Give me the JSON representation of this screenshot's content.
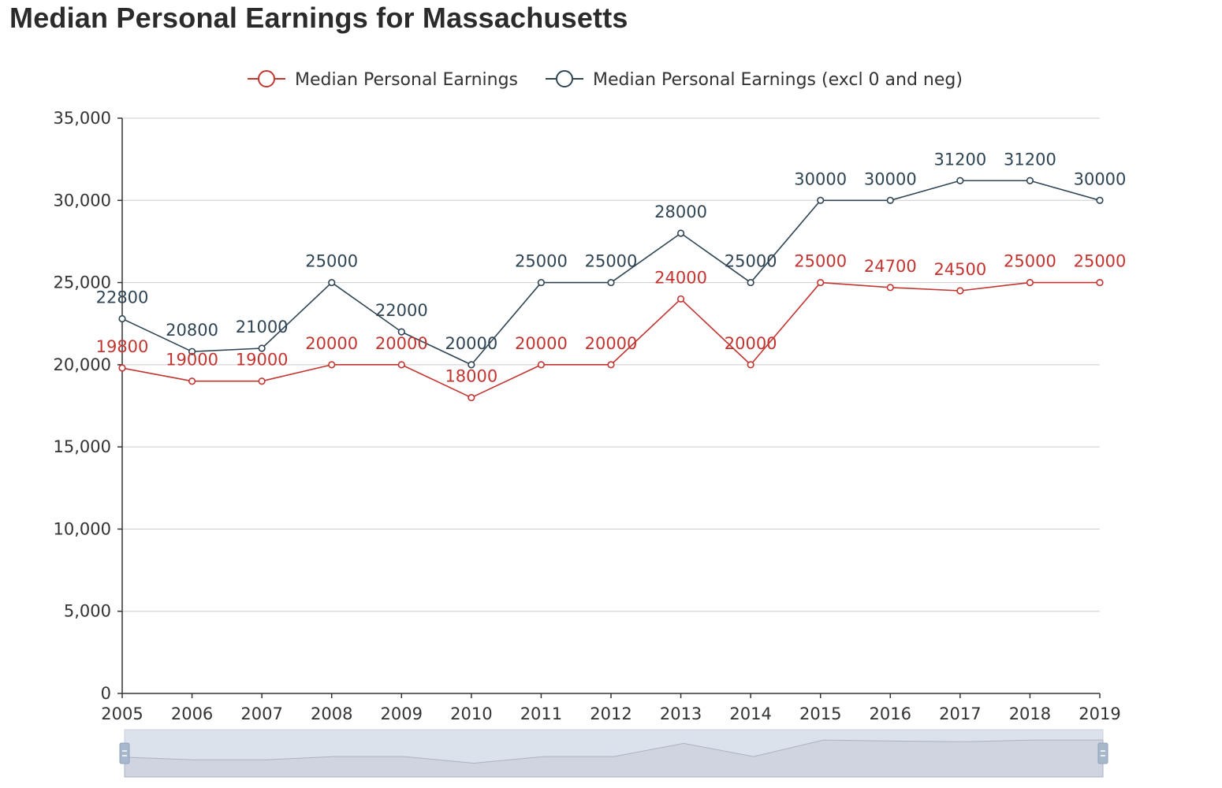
{
  "page": {
    "title": "Median Personal Earnings for Massachusetts"
  },
  "chart_data": {
    "type": "line",
    "title": "Median Personal Earnings for Massachusetts",
    "x": [
      "2005",
      "2006",
      "2007",
      "2008",
      "2009",
      "2010",
      "2011",
      "2012",
      "2013",
      "2014",
      "2015",
      "2016",
      "2017",
      "2018",
      "2019"
    ],
    "ylim": [
      0,
      35000
    ],
    "y_ticks": [
      0,
      5000,
      10000,
      15000,
      20000,
      25000,
      30000,
      35000
    ],
    "y_tick_labels": [
      "0",
      "5,000",
      "10,000",
      "15,000",
      "20,000",
      "25,000",
      "30,000",
      "35,000"
    ],
    "grid": true,
    "legend_position": "top-center",
    "data_zoom": {
      "visible": true,
      "range": [
        0,
        100
      ]
    },
    "series": [
      {
        "name": "Median Personal Earnings",
        "color": "#c23531",
        "values": [
          19800,
          19000,
          19000,
          20000,
          20000,
          18000,
          20000,
          20000,
          24000,
          20000,
          25000,
          24700,
          24500,
          25000,
          25000
        ]
      },
      {
        "name": "Median Personal Earnings (excl 0 and neg)",
        "color": "#2f4554",
        "values": [
          22800,
          20800,
          21000,
          25000,
          22000,
          20000,
          25000,
          25000,
          28000,
          25000,
          30000,
          30000,
          31200,
          31200,
          30000
        ]
      }
    ]
  }
}
